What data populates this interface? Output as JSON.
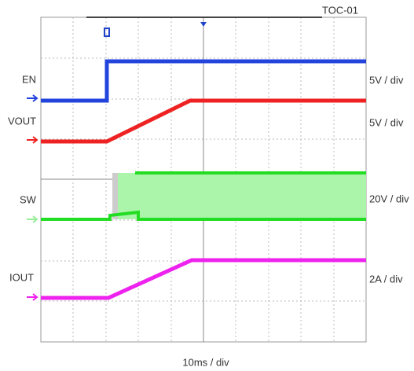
{
  "header": {
    "tag": "TOC-01"
  },
  "channels": [
    {
      "label": "EN",
      "scale": "5V / div"
    },
    {
      "label": "VOUT",
      "scale": "5V / div"
    },
    {
      "label": "SW",
      "scale": "20V / div"
    },
    {
      "label": "IOUT",
      "scale": "2A / div"
    }
  ],
  "timebase": "10ms / div"
}
